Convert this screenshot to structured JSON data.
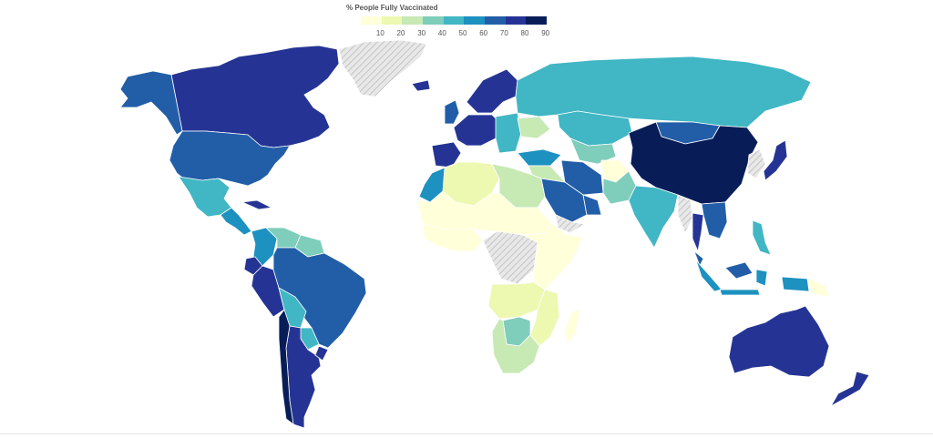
{
  "legend": {
    "title": "% People Fully Vaccinated",
    "ticks": [
      "10",
      "20",
      "30",
      "40",
      "50",
      "60",
      "70",
      "80",
      "90"
    ],
    "colors": [
      "#ffffd9",
      "#edf8b1",
      "#c7e9b4",
      "#7fcdbb",
      "#41b6c4",
      "#1d91c0",
      "#225ea8",
      "#253494",
      "#081d58"
    ],
    "no_data_color": "#dddddd"
  },
  "regions": [
    {
      "name": "canada",
      "level": 80
    },
    {
      "name": "alaska",
      "level": 70
    },
    {
      "name": "greenland",
      "level": null
    },
    {
      "name": "united-states",
      "level": 70
    },
    {
      "name": "mexico",
      "level": 50
    },
    {
      "name": "central-america",
      "level": 60
    },
    {
      "name": "cuba",
      "level": 80
    },
    {
      "name": "colombia",
      "level": 60
    },
    {
      "name": "venezuela",
      "level": 40
    },
    {
      "name": "guyana-suriname",
      "level": 40
    },
    {
      "name": "ecuador",
      "level": 80
    },
    {
      "name": "peru",
      "level": 80
    },
    {
      "name": "brazil",
      "level": 70
    },
    {
      "name": "bolivia",
      "level": 50
    },
    {
      "name": "paraguay",
      "level": 50
    },
    {
      "name": "argentina",
      "level": 80
    },
    {
      "name": "chile",
      "level": 90
    },
    {
      "name": "uruguay",
      "level": 80
    },
    {
      "name": "iceland",
      "level": 80
    },
    {
      "name": "uk-ireland",
      "level": 70
    },
    {
      "name": "scandinavia",
      "level": 80
    },
    {
      "name": "western-europe",
      "level": 80
    },
    {
      "name": "iberia",
      "level": 80
    },
    {
      "name": "eastern-europe",
      "level": 50
    },
    {
      "name": "ukraine",
      "level": 30
    },
    {
      "name": "turkey",
      "level": 60
    },
    {
      "name": "russia",
      "level": 50
    },
    {
      "name": "kazakhstan",
      "level": 50
    },
    {
      "name": "central-asia",
      "level": 40
    },
    {
      "name": "mongolia",
      "level": 70
    },
    {
      "name": "china",
      "level": 90
    },
    {
      "name": "korea",
      "level": null
    },
    {
      "name": "japan",
      "level": 80
    },
    {
      "name": "iran",
      "level": 70
    },
    {
      "name": "afghanistan",
      "level": 10
    },
    {
      "name": "pakistan",
      "level": 40
    },
    {
      "name": "india",
      "level": 50
    },
    {
      "name": "myanmar",
      "level": null
    },
    {
      "name": "thailand",
      "level": 80
    },
    {
      "name": "indochina",
      "level": 70
    },
    {
      "name": "malaysia",
      "level": 70
    },
    {
      "name": "indonesia",
      "level": 60
    },
    {
      "name": "philippines",
      "level": 50
    },
    {
      "name": "papua-new-guinea",
      "level": 10
    },
    {
      "name": "saudi-arabia",
      "level": 70
    },
    {
      "name": "yemen",
      "level": null
    },
    {
      "name": "oman-uae",
      "level": 70
    },
    {
      "name": "iraq-syria",
      "level": 30
    },
    {
      "name": "north-africa-west",
      "level": 20
    },
    {
      "name": "morocco",
      "level": 60
    },
    {
      "name": "egypt-libya",
      "level": 30
    },
    {
      "name": "sahel",
      "level": 10
    },
    {
      "name": "west-africa",
      "level": 10
    },
    {
      "name": "central-africa",
      "level": null
    },
    {
      "name": "east-africa",
      "level": 10
    },
    {
      "name": "angola-zambia",
      "level": 20
    },
    {
      "name": "zimbabwe-mozambique",
      "level": 20
    },
    {
      "name": "botswana",
      "level": 40
    },
    {
      "name": "south-africa",
      "level": 30
    },
    {
      "name": "madagascar",
      "level": 10
    },
    {
      "name": "australia",
      "level": 80
    },
    {
      "name": "new-zealand",
      "level": 80
    }
  ]
}
